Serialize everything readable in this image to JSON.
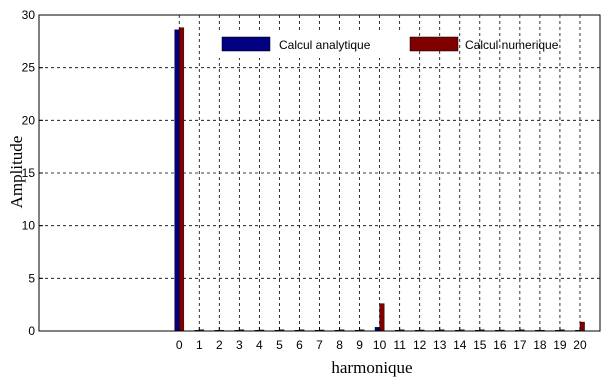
{
  "chart_data": {
    "type": "bar",
    "xlabel": "harmonique",
    "ylabel": "Amplitude",
    "ylim": [
      0,
      30
    ],
    "yticks": [
      0,
      5,
      10,
      15,
      20,
      25,
      30
    ],
    "grid": true,
    "legend_position": "top-right",
    "categories": [
      "0",
      "1",
      "2",
      "3",
      "4",
      "5",
      "6",
      "7",
      "8",
      "9",
      "10",
      "11",
      "12",
      "13",
      "14",
      "15",
      "16",
      "17",
      "18",
      "19",
      "20"
    ],
    "x_start": -7,
    "series": [
      {
        "name": "Calcul analytique",
        "color": "#000080",
        "values": [
          28.6,
          0.05,
          0.04,
          0.05,
          0.05,
          0.05,
          0.05,
          0.05,
          0.05,
          0.05,
          0.35,
          0.05,
          0.05,
          0.05,
          0.05,
          0.05,
          0.05,
          0.05,
          0.05,
          0.05,
          0.05
        ]
      },
      {
        "name": "Calcul numerique",
        "color": "#800000",
        "values": [
          28.8,
          0.12,
          0.08,
          0.12,
          0.1,
          0.12,
          0.12,
          0.1,
          0.12,
          0.12,
          2.6,
          0.12,
          0.1,
          0.12,
          0.12,
          0.12,
          0.1,
          0.12,
          0.08,
          0.12,
          0.85
        ]
      }
    ]
  }
}
